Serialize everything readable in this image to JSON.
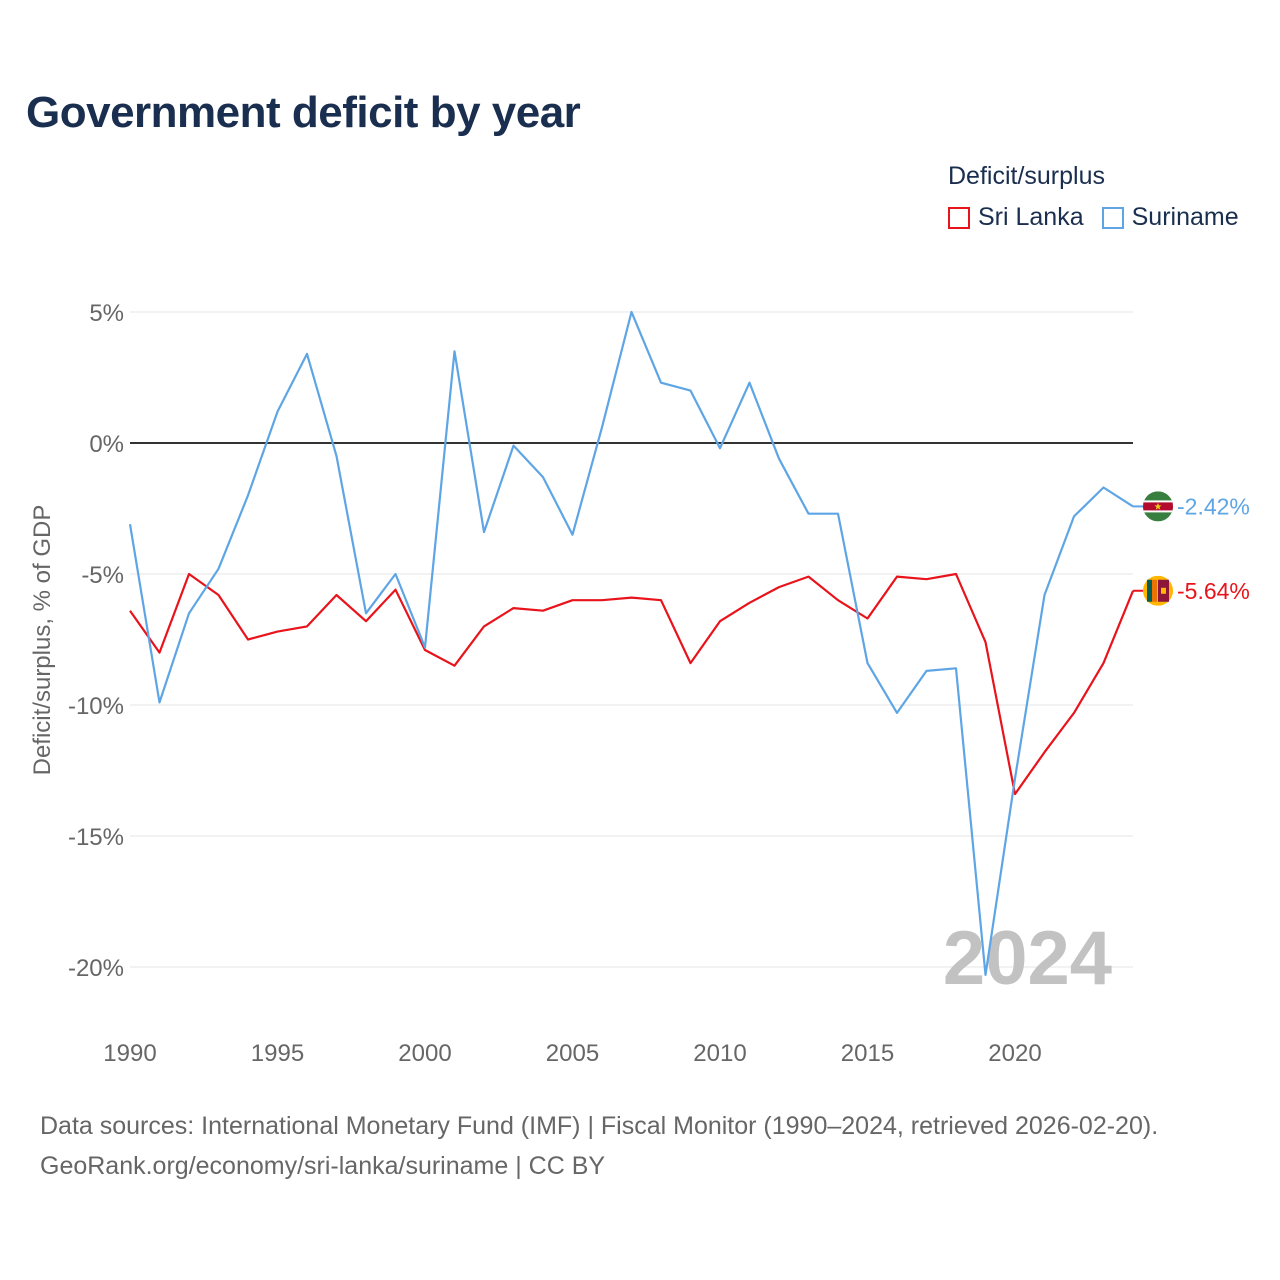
{
  "page": {
    "title": "Government deficit by year",
    "source_line1": "Data sources: International Monetary Fund (IMF) | Fiscal Monitor (1990–2024, retrieved 2026-02-20).",
    "source_line2": "GeoRank.org/economy/sri-lanka/suriname | CC BY"
  },
  "legend": {
    "title": "Deficit/surplus",
    "items": [
      {
        "label": "Sri Lanka",
        "color": "#e8131b"
      },
      {
        "label": "Suriname",
        "color": "#5ea5e5"
      }
    ]
  },
  "chart_data": {
    "type": "line",
    "title": "Government deficit by year",
    "xlabel": "",
    "ylabel": "Deficit/surplus, % of GDP",
    "ylim": [
      -20,
      5
    ],
    "xlim": [
      1990,
      2024
    ],
    "yticks": [
      5,
      0,
      -5,
      -10,
      -15,
      -20
    ],
    "ytick_labels": [
      "5%",
      "0%",
      "-5%",
      "-10%",
      "-15%",
      "-20%"
    ],
    "xticks": [
      1990,
      1995,
      2000,
      2005,
      2010,
      2015,
      2020
    ],
    "xtick_labels": [
      "1990",
      "1995",
      "2000",
      "2005",
      "2010",
      "2015",
      "2020"
    ],
    "zero_line": true,
    "watermark_year": "2024",
    "x": [
      1990,
      1991,
      1992,
      1993,
      1994,
      1995,
      1996,
      1997,
      1998,
      1999,
      2000,
      2001,
      2002,
      2003,
      2004,
      2005,
      2006,
      2007,
      2008,
      2009,
      2010,
      2011,
      2012,
      2013,
      2014,
      2015,
      2016,
      2017,
      2018,
      2019,
      2020,
      2021,
      2022,
      2023,
      2024
    ],
    "series": [
      {
        "name": "Sri Lanka",
        "color": "#e8131b",
        "end_label": "-5.64%",
        "flag_icon": "sri-lanka-flag-icon",
        "values": [
          -6.4,
          -8.0,
          -5.0,
          -5.8,
          -7.5,
          -7.2,
          -7.0,
          -5.8,
          -6.8,
          -5.6,
          -7.9,
          -8.5,
          -7.0,
          -6.3,
          -6.4,
          -6.0,
          -6.0,
          -5.9,
          -6.0,
          -8.4,
          -6.8,
          -6.1,
          -5.5,
          -5.1,
          -6.0,
          -6.7,
          -5.1,
          -5.2,
          -5.0,
          -7.6,
          -13.4,
          -11.8,
          -10.3,
          -8.4,
          -5.64
        ]
      },
      {
        "name": "Suriname",
        "color": "#5ea5e5",
        "end_label": "-2.42%",
        "flag_icon": "suriname-flag-icon",
        "values": [
          -3.1,
          -9.9,
          -6.5,
          -4.8,
          -2.0,
          1.2,
          3.4,
          -0.5,
          -6.5,
          -5.0,
          -7.8,
          3.5,
          -3.4,
          -0.1,
          -1.3,
          -3.5,
          0.6,
          5.0,
          2.3,
          2.0,
          -0.2,
          2.3,
          -0.6,
          -2.7,
          -2.7,
          -8.4,
          -10.3,
          -8.7,
          -8.6,
          -20.3,
          -12.8,
          -5.8,
          -2.8,
          -1.7,
          -2.42
        ]
      }
    ]
  }
}
